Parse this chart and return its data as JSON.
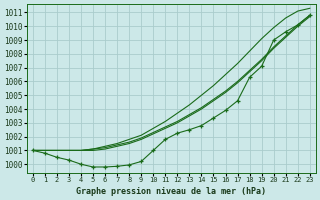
{
  "bg_color": "#cce8e8",
  "grid_color": "#aacccc",
  "line_color": "#1a6b1a",
  "title": "Graphe pression niveau de la mer (hPa)",
  "xlim": [
    -0.5,
    23.5
  ],
  "ylim": [
    999.4,
    1011.6
  ],
  "yticks": [
    1000,
    1001,
    1002,
    1003,
    1004,
    1005,
    1006,
    1007,
    1008,
    1009,
    1010,
    1011
  ],
  "xticks": [
    0,
    1,
    2,
    3,
    4,
    5,
    6,
    7,
    8,
    9,
    10,
    11,
    12,
    13,
    14,
    15,
    16,
    17,
    18,
    19,
    20,
    21,
    22,
    23
  ],
  "line_smooth1": [
    1001.0,
    1001.0,
    1001.0,
    1001.0,
    1001.0,
    1001.1,
    1001.2,
    1001.4,
    1001.6,
    1001.9,
    1002.3,
    1002.7,
    1003.1,
    1003.6,
    1004.1,
    1004.7,
    1005.3,
    1006.0,
    1006.8,
    1007.6,
    1008.5,
    1009.3,
    1010.1,
    1010.8
  ],
  "line_smooth2": [
    1001.0,
    1001.0,
    1001.0,
    1001.0,
    1001.0,
    1001.0,
    1001.1,
    1001.3,
    1001.5,
    1001.8,
    1002.2,
    1002.6,
    1003.0,
    1003.5,
    1004.0,
    1004.6,
    1005.2,
    1005.9,
    1006.7,
    1007.5,
    1008.4,
    1009.2,
    1010.0,
    1010.7
  ],
  "line_smooth3": [
    1001.0,
    1001.0,
    1001.0,
    1001.0,
    1001.0,
    1001.1,
    1001.3,
    1001.5,
    1001.8,
    1002.1,
    1002.6,
    1003.1,
    1003.7,
    1004.3,
    1005.0,
    1005.7,
    1006.5,
    1007.3,
    1008.2,
    1009.1,
    1009.9,
    1010.6,
    1011.1,
    1011.3
  ],
  "line_markers": [
    1001.0,
    1000.8,
    1000.5,
    1000.3,
    1000.0,
    999.8,
    999.8,
    999.85,
    999.95,
    1000.2,
    1001.0,
    1001.8,
    1002.25,
    1002.5,
    1002.8,
    1003.35,
    1003.9,
    1004.6,
    1006.3,
    1007.1,
    1009.0,
    1009.6,
    1010.1,
    1010.8
  ]
}
